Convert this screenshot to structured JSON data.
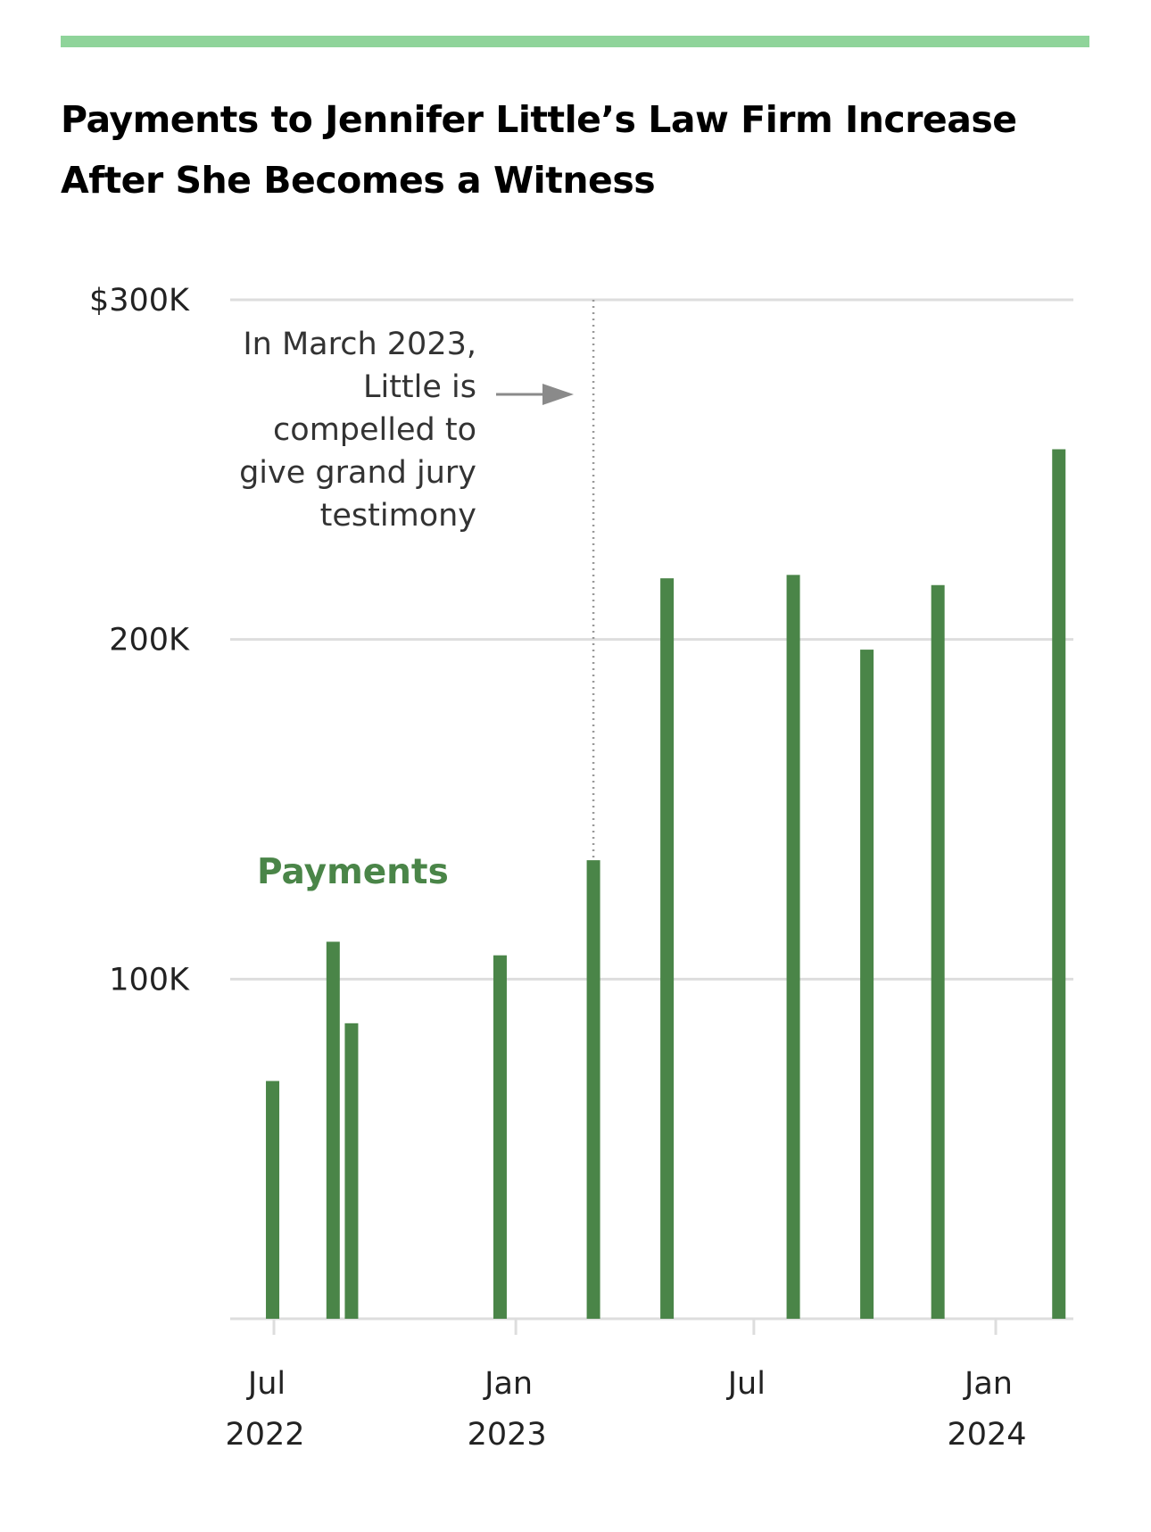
{
  "colors": {
    "accent_rule": "#8fd49a",
    "bar": "#4a8548",
    "grid": "#dddddd",
    "annotation_line": "#999999",
    "arrow": "#8a8a8a"
  },
  "title": "Payments to Jennifer Little’s Law Firm Increase After She Becomes a Witness",
  "chart_data": {
    "type": "bar",
    "title": "Payments to Jennifer Little’s Law Firm Increase After She Becomes a Witness",
    "ylim": [
      0,
      300000
    ],
    "y_ticks": [
      {
        "value": 300000,
        "label": "$300K"
      },
      {
        "value": 200000,
        "label": "200K"
      },
      {
        "value": 100000,
        "label": "100K"
      }
    ],
    "x_ticks": [
      {
        "date": "2022-07-01",
        "line1": "Jul",
        "line2": "2022"
      },
      {
        "date": "2023-01-01",
        "line1": "Jan",
        "line2": "2023"
      },
      {
        "date": "2023-07-01",
        "line1": "Jul",
        "line2": ""
      },
      {
        "date": "2024-01-01",
        "line1": "Jan",
        "line2": "2024"
      }
    ],
    "series": [
      {
        "name": "Payments",
        "points": [
          {
            "date": "2022-06-30",
            "value": 70000
          },
          {
            "date": "2022-08-15",
            "value": 111000
          },
          {
            "date": "2022-08-29",
            "value": 87000
          },
          {
            "date": "2022-12-20",
            "value": 107000
          },
          {
            "date": "2023-03-01",
            "value": 135000
          },
          {
            "date": "2023-04-26",
            "value": 218000
          },
          {
            "date": "2023-07-31",
            "value": 219000
          },
          {
            "date": "2023-09-25",
            "value": 197000
          },
          {
            "date": "2023-11-18",
            "value": 216000
          },
          {
            "date": "2024-02-18",
            "value": 256000
          }
        ]
      }
    ],
    "annotation": {
      "date": "2023-03-01",
      "lines": [
        "In March 2023,",
        "Little is",
        "compelled to",
        "give grand jury",
        "testimony"
      ]
    },
    "grid": true
  }
}
